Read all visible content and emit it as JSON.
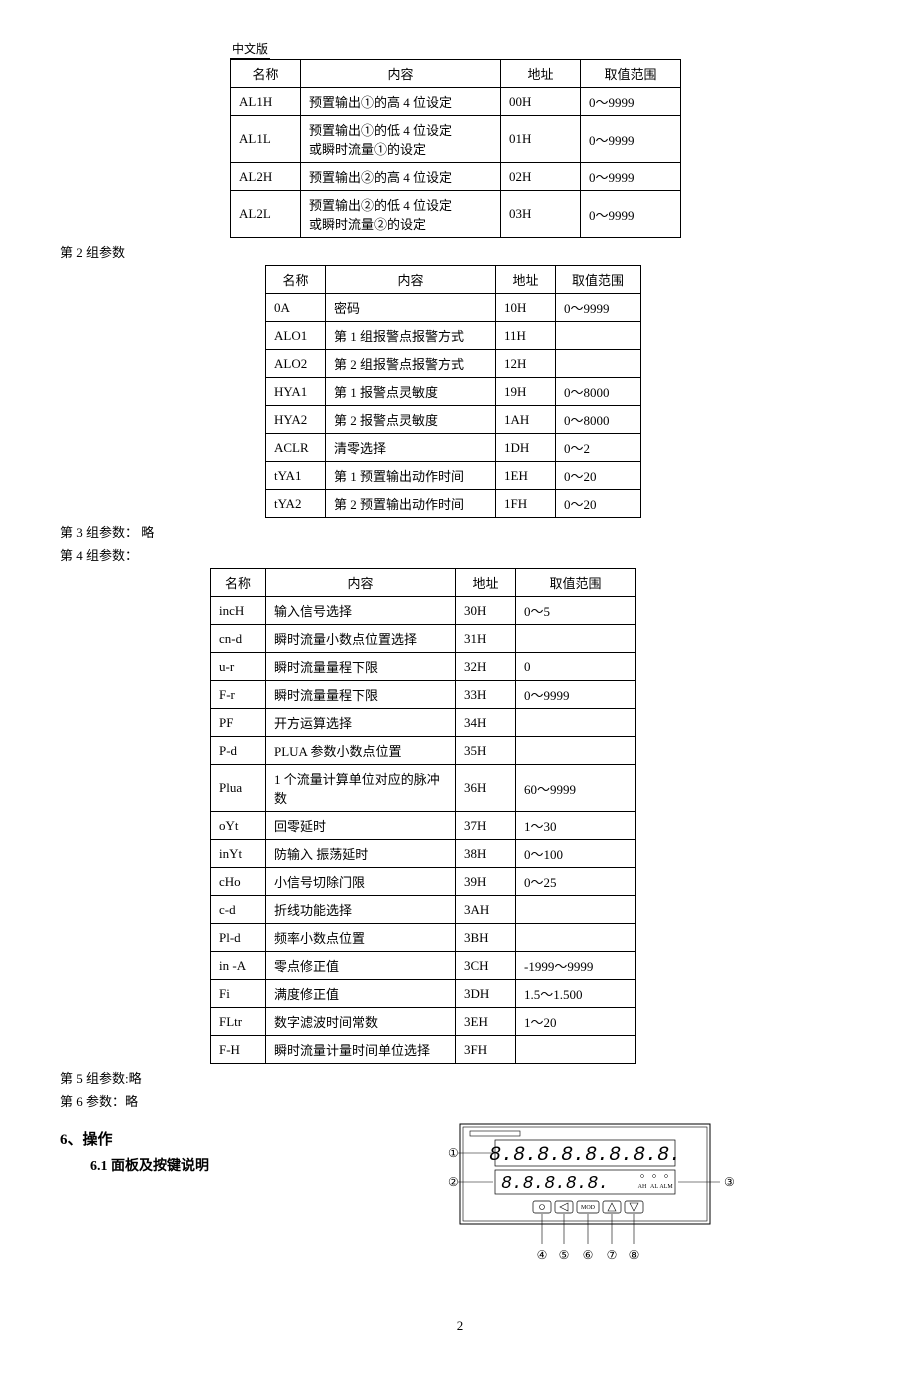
{
  "header": {
    "label": "中文版"
  },
  "table1": {
    "headers": [
      "名称",
      "内容",
      "地址",
      "取值范围"
    ],
    "rows": [
      [
        "AL1H",
        "预置输出①的高 4 位设定",
        "00H",
        "0～9999"
      ],
      [
        "AL1L",
        "预置输出①的低 4 位设定\n或瞬时流量①的设定",
        "01H",
        "0～9999"
      ],
      [
        "AL2H",
        "预置输出②的高 4 位设定",
        "02H",
        "0～9999"
      ],
      [
        "AL2L",
        "预置输出②的低 4 位设定\n或瞬时流量②的设定",
        "03H",
        "0～9999"
      ]
    ]
  },
  "labels": {
    "group2": "第 2 组参数",
    "group3": "第 3 组参数： 略",
    "group4": "第 4 组参数：",
    "group5": "第 5 组参数:略",
    "group6": "第 6 参数：略",
    "section6": "6、操作",
    "section6_1": "6.1 面板及按键说明",
    "page": "2"
  },
  "table2": {
    "headers": [
      "名称",
      "内容",
      "地址",
      "取值范围"
    ],
    "rows": [
      [
        "0A",
        "密码",
        "10H",
        "0～9999"
      ],
      [
        "ALO1",
        "第 1 组报警点报警方式",
        "11H",
        ""
      ],
      [
        "ALO2",
        "第 2 组报警点报警方式",
        "12H",
        ""
      ],
      [
        "HYA1",
        "第 1 报警点灵敏度",
        "19H",
        "0～8000"
      ],
      [
        "HYA2",
        "第 2 报警点灵敏度",
        "1AH",
        "0～8000"
      ],
      [
        "ACLR",
        "清零选择",
        "1DH",
        "0～2"
      ],
      [
        "tYA1",
        "第 1 预置输出动作时间",
        "1EH",
        "0～20"
      ],
      [
        "tYA2",
        "第 2 预置输出动作时间",
        "1FH",
        "0～20"
      ]
    ]
  },
  "table4": {
    "headers": [
      "名称",
      "内容",
      "地址",
      "取值范围"
    ],
    "rows": [
      [
        "incH",
        "输入信号选择",
        "30H",
        "0～5"
      ],
      [
        "cn-d",
        "瞬时流量小数点位置选择",
        "31H",
        ""
      ],
      [
        "u-r",
        "瞬时流量量程下限",
        "32H",
        "0"
      ],
      [
        "F-r",
        "瞬时流量量程下限",
        "33H",
        "0～9999"
      ],
      [
        "PF",
        "开方运算选择",
        "34H",
        ""
      ],
      [
        "P-d",
        "PLUA 参数小数点位置",
        "35H",
        ""
      ],
      [
        "Plua",
        "1 个流量计算单位对应的脉冲数",
        "36H",
        "60～9999"
      ],
      [
        "oYt",
        "回零延时",
        "37H",
        "1～30"
      ],
      [
        "inYt",
        "防输入 振荡延时",
        "38H",
        "0～100"
      ],
      [
        "cHo",
        "小信号切除门限",
        "39H",
        "0～25"
      ],
      [
        "c-d",
        "折线功能选择",
        "3AH",
        ""
      ],
      [
        "Pl-d",
        "频率小数点位置",
        "3BH",
        ""
      ],
      [
        "in -A",
        "零点修正值",
        "3CH",
        "-1999～9999"
      ],
      [
        "Fi",
        "满度修正值",
        "3DH",
        "1.5～1.500"
      ],
      [
        "FLtr",
        "数字滤波时间常数",
        "3EH",
        "1～20"
      ],
      [
        "F-H",
        "瞬时流量计量时间单位选择",
        "3FH",
        ""
      ]
    ]
  },
  "panel": {
    "markers": [
      "①",
      "②",
      "③",
      "④",
      "⑤",
      "⑥",
      "⑦",
      "⑧"
    ],
    "led_labels": [
      "AH",
      "AL",
      "ALM"
    ],
    "button_mod": "MOD",
    "segment": "8.8.8.8.8.8.8.8.",
    "segment2": "8.8.8.8.8."
  }
}
